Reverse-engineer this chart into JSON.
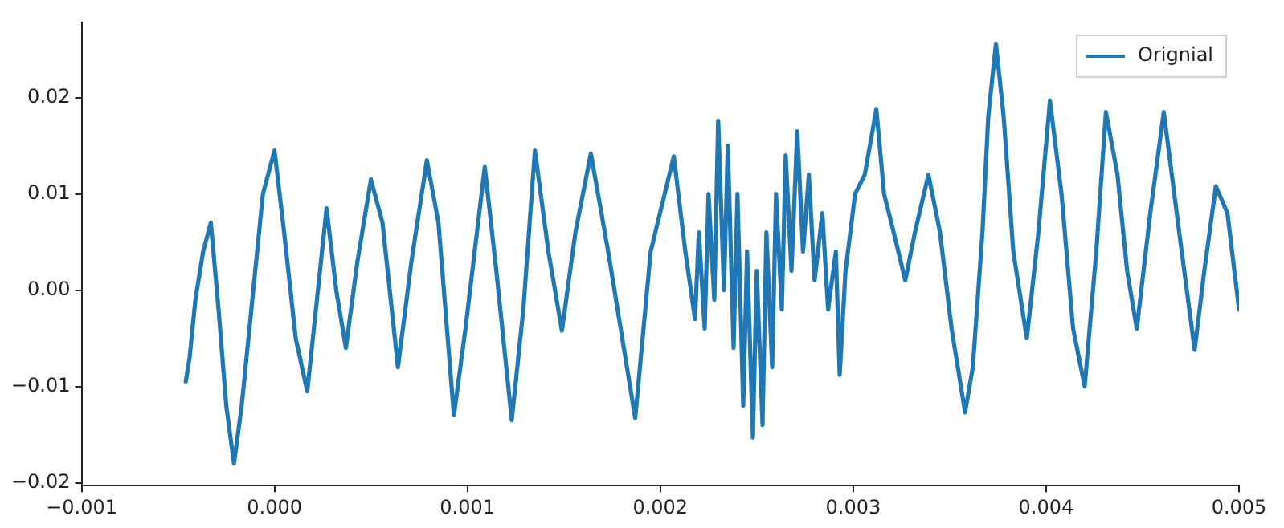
{
  "chart_data": {
    "type": "line",
    "xlim": [
      -0.001,
      0.005
    ],
    "ylim": [
      -0.0203,
      0.0278
    ],
    "xticks": [
      {
        "value": -0.001,
        "label": "−0.001"
      },
      {
        "value": 0,
        "label": "0.000"
      },
      {
        "value": 0.001,
        "label": "0.001"
      },
      {
        "value": 0.002,
        "label": "0.002"
      },
      {
        "value": 0.003,
        "label": "0.003"
      },
      {
        "value": 0.004,
        "label": "0.004"
      },
      {
        "value": 0.005,
        "label": "0.005"
      }
    ],
    "yticks": [
      {
        "value": -0.02,
        "label": "−0.02"
      },
      {
        "value": -0.01,
        "label": "−0.01"
      },
      {
        "value": 0,
        "label": "0.00"
      },
      {
        "value": 0.01,
        "label": "0.01"
      },
      {
        "value": 0.02,
        "label": "0.02"
      }
    ],
    "grid": false,
    "legend": "top right",
    "marker": "none",
    "line_style": "solid",
    "x": [
      -0.00046,
      -0.00044,
      -0.00041,
      -0.00037,
      -0.00033,
      -0.00029,
      -0.00025,
      -0.00021,
      -0.00017,
      -0.00011,
      -6e-05,
      0.0,
      5e-05,
      0.00011,
      0.00017,
      0.00022,
      0.00027,
      0.00032,
      0.00037,
      0.00043,
      0.0005,
      0.00056,
      0.00064,
      0.00071,
      0.00079,
      0.00085,
      0.00093,
      0.00099,
      0.00109,
      0.00115,
      0.00123,
      0.00129,
      0.00135,
      0.00142,
      0.00149,
      0.00156,
      0.00164,
      0.00173,
      0.00187,
      0.00195,
      0.00207,
      0.00213,
      0.00218,
      0.0022,
      0.00223,
      0.00225,
      0.00228,
      0.0023,
      0.00233,
      0.00235,
      0.00238,
      0.0024,
      0.00243,
      0.00245,
      0.00248,
      0.0025,
      0.00253,
      0.00255,
      0.00258,
      0.0026,
      0.00263,
      0.00265,
      0.00268,
      0.00271,
      0.00274,
      0.00277,
      0.0028,
      0.00284,
      0.00287,
      0.00291,
      0.00293,
      0.00296,
      0.00301,
      0.00306,
      0.00312,
      0.00316,
      0.00321,
      0.00327,
      0.00332,
      0.00339,
      0.00345,
      0.00351,
      0.00358,
      0.00362,
      0.00367,
      0.0037,
      0.00374,
      0.00378,
      0.00383,
      0.0039,
      0.00396,
      0.00402,
      0.00408,
      0.00414,
      0.0042,
      0.00426,
      0.00431,
      0.00437,
      0.00442,
      0.00447,
      0.00454,
      0.00461,
      0.00469,
      0.00477,
      0.00482,
      0.00488,
      0.00494,
      0.005
    ],
    "series": [
      {
        "name": "Orignial",
        "color": "#1f77b4",
        "values": [
          -0.0095,
          -0.007,
          -0.001,
          0.004,
          0.007,
          -0.002,
          -0.012,
          -0.018,
          -0.012,
          0.0,
          0.01,
          0.0145,
          0.006,
          -0.005,
          -0.0105,
          -0.001,
          0.0085,
          0.0,
          -0.006,
          0.003,
          0.0115,
          0.007,
          -0.008,
          0.003,
          0.0135,
          0.007,
          -0.013,
          -0.004,
          0.0128,
          0.002,
          -0.0135,
          -0.002,
          0.0145,
          0.004,
          -0.0042,
          0.006,
          0.0142,
          0.004,
          -0.0133,
          0.004,
          0.0139,
          0.004,
          -0.003,
          0.006,
          -0.004,
          0.01,
          -0.001,
          0.0176,
          0.0,
          0.015,
          -0.006,
          0.01,
          -0.012,
          0.004,
          -0.0153,
          0.002,
          -0.014,
          0.006,
          -0.008,
          0.01,
          -0.002,
          0.014,
          0.002,
          0.0165,
          0.004,
          0.012,
          0.001,
          0.008,
          -0.002,
          0.004,
          -0.0088,
          0.002,
          0.01,
          0.012,
          0.0188,
          0.01,
          0.006,
          0.001,
          0.006,
          0.012,
          0.006,
          -0.004,
          -0.0127,
          -0.008,
          0.006,
          0.018,
          0.0256,
          0.018,
          0.004,
          -0.005,
          0.006,
          0.0197,
          0.01,
          -0.004,
          -0.01,
          0.004,
          0.0185,
          0.012,
          0.002,
          -0.004,
          0.008,
          0.0185,
          0.006,
          -0.0062,
          0.002,
          0.0108,
          0.008,
          -0.002
        ]
      }
    ]
  }
}
